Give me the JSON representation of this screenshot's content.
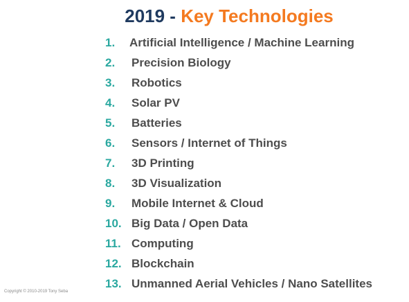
{
  "title": {
    "year": "2019",
    "separator": " - ",
    "main": "Key Technologies"
  },
  "items": [
    {
      "number": "1.",
      "label": "Artificial Intelligence / Machine Learning"
    },
    {
      "number": "2.",
      "label": "Precision Biology"
    },
    {
      "number": "3.",
      "label": "Robotics"
    },
    {
      "number": "4.",
      "label": "Solar PV"
    },
    {
      "number": "5.",
      "label": "Batteries"
    },
    {
      "number": "6.",
      "label": "Sensors / Internet of Things"
    },
    {
      "number": "7.",
      "label": "3D Printing"
    },
    {
      "number": "8.",
      "label": "3D Visualization"
    },
    {
      "number": "9.",
      "label": "Mobile Internet & Cloud"
    },
    {
      "number": "10.",
      "label": "Big Data / Open Data"
    },
    {
      "number": "11.",
      "label": "Computing"
    },
    {
      "number": "12.",
      "label": "Blockchain"
    },
    {
      "number": "13.",
      "label": "Unmanned Aerial Vehicles / Nano Satellites"
    }
  ],
  "copyright": "Copyright © 2010-2019 Tony Seba",
  "colors": {
    "title_year": "#1f3a5f",
    "title_main": "#f47a20",
    "number": "#2aa8a0",
    "label": "#4d4d4d"
  }
}
